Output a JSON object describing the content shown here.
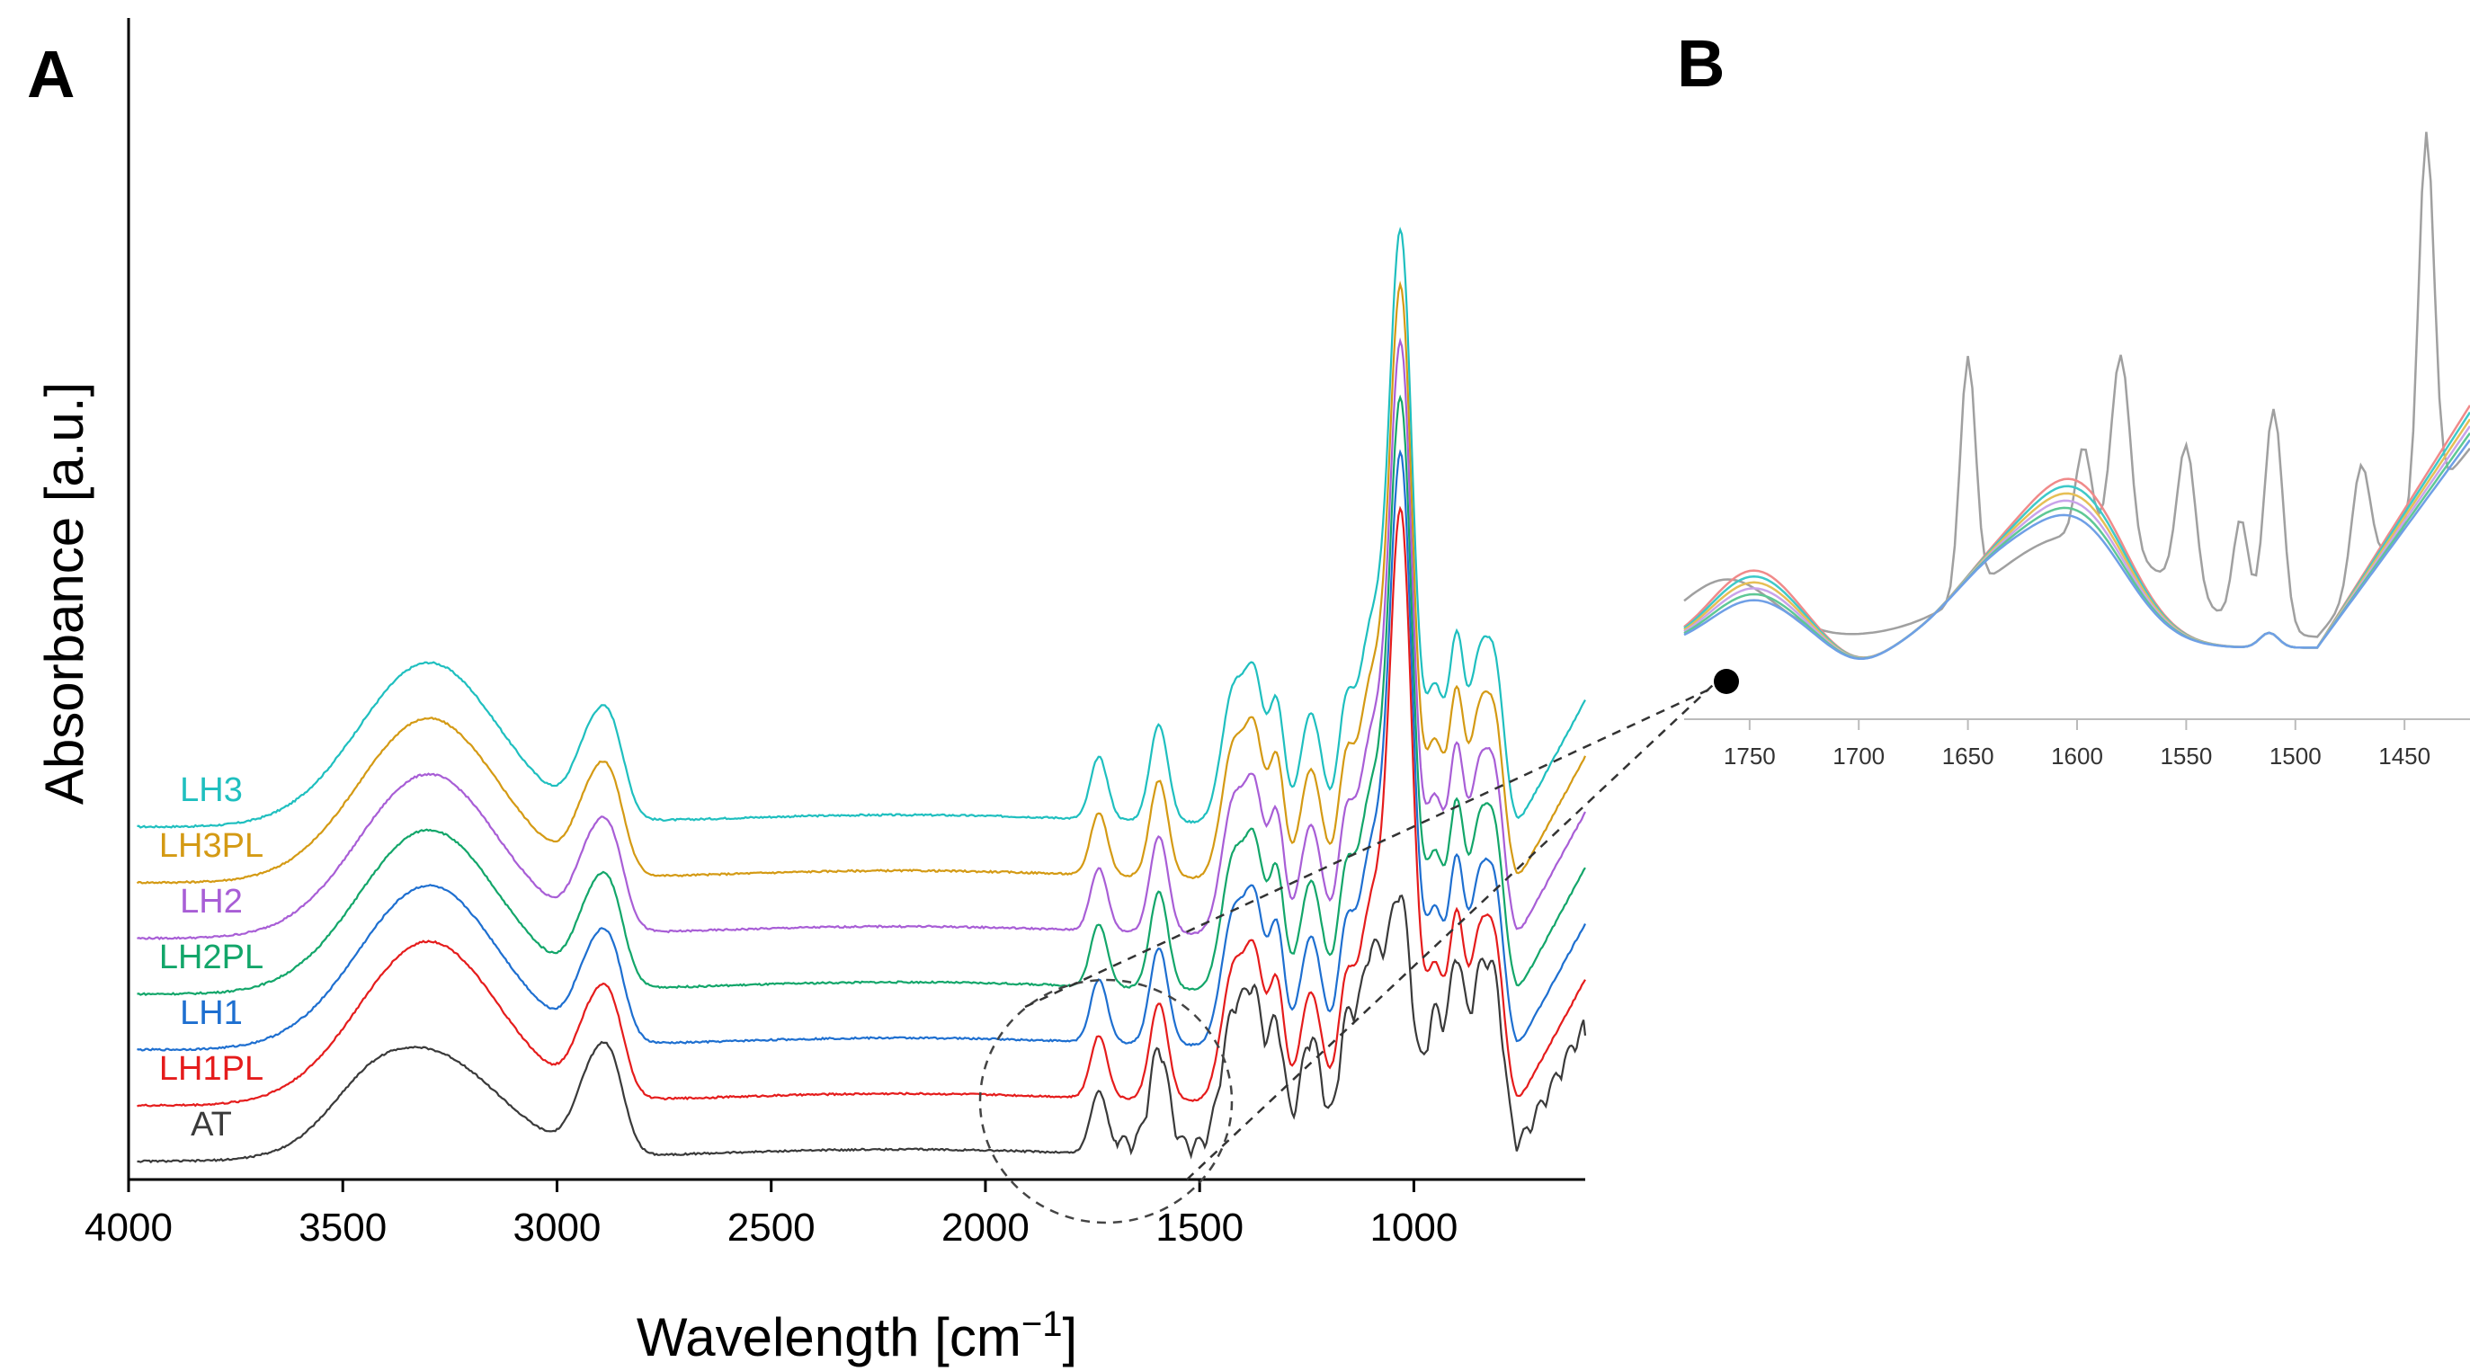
{
  "chart_data": [
    {
      "panel": "A",
      "type": "line",
      "xlabel": "Wavelength [cm⁻¹]",
      "xlabel_main": "Wavelength [cm",
      "xlabel_sup": "−1",
      "xlabel_close": "]",
      "ylabel": "Absorbance  [a.u.]",
      "xlim": [
        4000,
        600
      ],
      "x_reversed": true,
      "xticks": [
        4000,
        3500,
        3000,
        2500,
        2000,
        1500,
        1000
      ],
      "y_ticks_shown": false,
      "grid": false,
      "legend": "inline labels at left of each trace",
      "series": [
        {
          "name": "LH3",
          "color": "#1fbfbf",
          "offset": 6
        },
        {
          "name": "LH3PL",
          "color": "#d49a14",
          "offset": 5
        },
        {
          "name": "LH2",
          "color": "#a85ed6",
          "offset": 4
        },
        {
          "name": "LH2PL",
          "color": "#13a66a",
          "offset": 3
        },
        {
          "name": "LH1",
          "color": "#1e6fd0",
          "offset": 2
        },
        {
          "name": "LH1PL",
          "color": "#e51c1c",
          "offset": 1
        },
        {
          "name": "AT",
          "color": "#3a3a3a",
          "offset": 0
        }
      ],
      "peaks_cm1": [
        3300,
        2920,
        2880,
        1735,
        1595,
        1420,
        1370,
        1320,
        1240,
        1160,
        1030,
        900,
        810
      ],
      "annotation": "dashed circle around 1500–1800 region, zoomed in panel B"
    },
    {
      "panel": "B",
      "type": "line",
      "xlim": [
        1780,
        1420
      ],
      "x_reversed": true,
      "xticks": [
        1750,
        1700,
        1650,
        1600,
        1550,
        1500,
        1450
      ],
      "y_ticks_shown": false,
      "series_colors": [
        "#a0a0a0",
        "#f08a8a",
        "#3ec9c9",
        "#e6bf55",
        "#c9a3ea",
        "#5ec895",
        "#6f9fe6"
      ]
    }
  ]
}
